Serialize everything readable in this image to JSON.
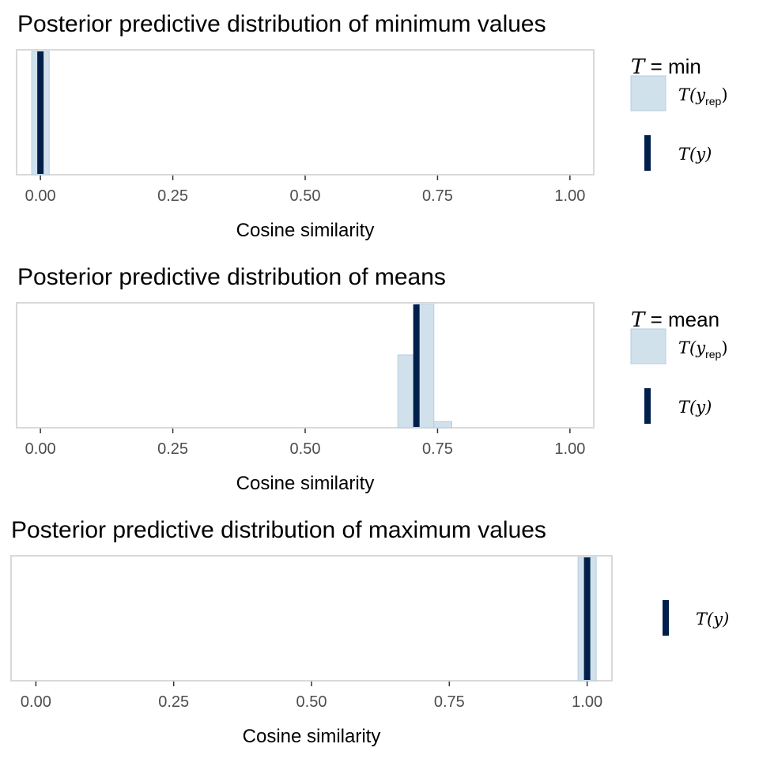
{
  "colors": {
    "rep_fill": "#d1e1ec",
    "rep_outline": "#b3cde0",
    "observed": "#011f4b",
    "frame": "#d9d9d9"
  },
  "chart_data": [
    {
      "type": "bar",
      "title": "Posterior predictive distribution of minimum values",
      "xlabel": "Cosine similarity",
      "xlim": [
        -0.045,
        1.045
      ],
      "xticks": [
        "0.00",
        "0.25",
        "0.50",
        "0.75",
        "1.00"
      ],
      "xtick_values": [
        0,
        0.25,
        0.5,
        0.75,
        1.0
      ],
      "histogram": {
        "bin_width": 0.033,
        "bins": [
          {
            "x0": -0.0165,
            "x1": 0.0165,
            "density": 1.0
          }
        ]
      },
      "observed": 0.0,
      "legend": {
        "title_stat": "min",
        "rep_label": "T(y",
        "rep_sub": "rep",
        "obs_label": "T(y)",
        "show_rep": true
      }
    },
    {
      "type": "bar",
      "title": "Posterior predictive distribution of means",
      "xlabel": "Cosine similarity",
      "xlim": [
        -0.045,
        1.045
      ],
      "xticks": [
        "0.00",
        "0.25",
        "0.50",
        "0.75",
        "1.00"
      ],
      "xtick_values": [
        0,
        0.25,
        0.5,
        0.75,
        1.0
      ],
      "histogram": {
        "bin_width": 0.034,
        "bins": [
          {
            "x0": 0.675,
            "x1": 0.709,
            "density": 0.59
          },
          {
            "x0": 0.709,
            "x1": 0.743,
            "density": 1.0
          },
          {
            "x0": 0.743,
            "x1": 0.777,
            "density": 0.05
          }
        ]
      },
      "observed": 0.71,
      "legend": {
        "title_stat": "mean",
        "rep_label": "T(y",
        "rep_sub": "rep",
        "obs_label": "T(y)",
        "show_rep": true
      }
    },
    {
      "type": "bar",
      "title": "Posterior predictive distribution of maximum values",
      "xlabel": "Cosine similarity",
      "xlim": [
        -0.045,
        1.045
      ],
      "xticks": [
        "0.00",
        "0.25",
        "0.50",
        "0.75",
        "1.00"
      ],
      "xtick_values": [
        0,
        0.25,
        0.5,
        0.75,
        1.0
      ],
      "histogram": {
        "bin_width": 0.033,
        "bins": [
          {
            "x0": 0.9835,
            "x1": 1.0165,
            "density": 1.0
          }
        ]
      },
      "observed": 1.0,
      "legend": {
        "title_stat": "",
        "rep_label": "",
        "rep_sub": "",
        "obs_label": "T(y)",
        "show_rep": false
      }
    }
  ]
}
